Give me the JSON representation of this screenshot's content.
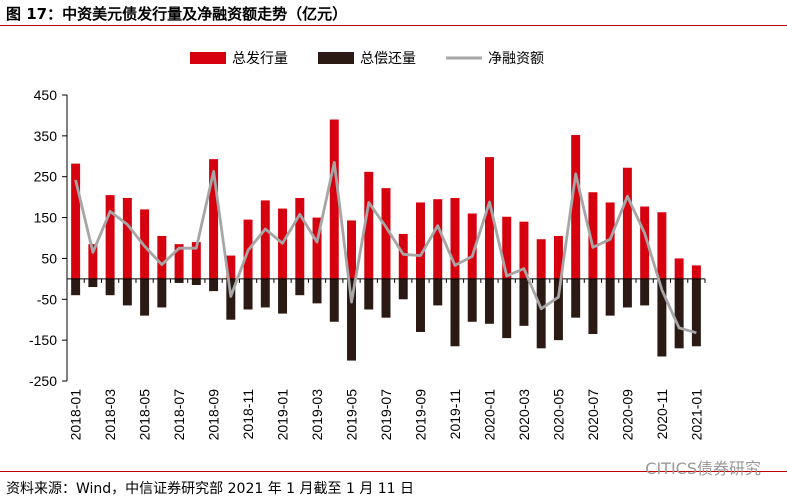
{
  "header": {
    "title": "图 17：中资美元债发行量及净融资额走势（亿元）"
  },
  "footer": {
    "source": "资料来源：Wind，中信证券研究部  2021 年 1 月截至 1 月 11 日",
    "watermark": "CITICS债券研究"
  },
  "colors": {
    "issuance": "#d7000f",
    "repayment": "#2b1a14",
    "net": "#a6a6a6",
    "rule": "#c00000"
  },
  "chart_data": {
    "type": "bar",
    "title": "",
    "xlabel": "",
    "ylabel": "",
    "ylim": [
      -250,
      450
    ],
    "yticks": [
      450,
      350,
      250,
      150,
      50,
      -50,
      -150,
      -250
    ],
    "grid": false,
    "legend": "top",
    "categories": [
      "2018-01",
      "2018-02",
      "2018-03",
      "2018-04",
      "2018-05",
      "2018-06",
      "2018-07",
      "2018-08",
      "2018-09",
      "2018-10",
      "2018-11",
      "2018-12",
      "2019-01",
      "2019-02",
      "2019-03",
      "2019-04",
      "2019-05",
      "2019-06",
      "2019-07",
      "2019-08",
      "2019-09",
      "2019-10",
      "2019-11",
      "2019-12",
      "2020-01",
      "2020-02",
      "2020-03",
      "2020-04",
      "2020-05",
      "2020-06",
      "2020-07",
      "2020-08",
      "2020-09",
      "2020-10",
      "2020-11",
      "2020-12",
      "2021-01"
    ],
    "xtick_labels": [
      "2018-01",
      "2018-03",
      "2018-05",
      "2018-07",
      "2018-09",
      "2018-11",
      "2019-01",
      "2019-03",
      "2019-05",
      "2019-07",
      "2019-09",
      "2019-11",
      "2020-01",
      "2020-03",
      "2020-05",
      "2020-07",
      "2020-09",
      "2020-11",
      "2021-01"
    ],
    "series": [
      {
        "name": "总发行量",
        "type": "bar",
        "values": [
          282,
          85,
          205,
          198,
          170,
          105,
          85,
          90,
          293,
          57,
          145,
          192,
          172,
          198,
          150,
          390,
          143,
          262,
          222,
          110,
          187,
          195,
          198,
          160,
          298,
          152,
          140,
          97,
          105,
          352,
          212,
          187,
          272,
          177,
          163,
          50,
          33
        ]
      },
      {
        "name": "总偿还量",
        "type": "bar",
        "values": [
          -40,
          -20,
          -40,
          -65,
          -90,
          -70,
          -10,
          -15,
          -30,
          -100,
          -75,
          -70,
          -85,
          -40,
          -60,
          -105,
          -200,
          -75,
          -95,
          -50,
          -130,
          -65,
          -165,
          -105,
          -110,
          -145,
          -115,
          -170,
          -150,
          -95,
          -135,
          -90,
          -70,
          -65,
          -190,
          -170,
          -165
        ]
      },
      {
        "name": "净融资额",
        "type": "line",
        "values": [
          242,
          65,
          165,
          133,
          80,
          35,
          75,
          75,
          263,
          -43,
          70,
          122,
          87,
          158,
          90,
          285,
          -57,
          187,
          127,
          60,
          57,
          130,
          33,
          55,
          188,
          7,
          25,
          -73,
          -45,
          257,
          77,
          97,
          202,
          112,
          -27,
          -120,
          -132
        ]
      }
    ]
  }
}
